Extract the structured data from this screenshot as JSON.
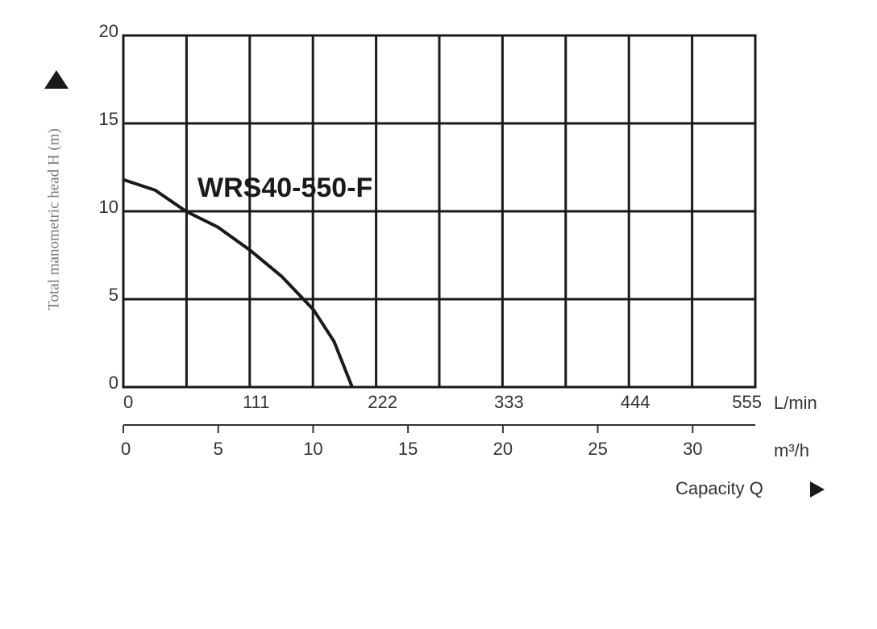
{
  "chart_data": {
    "type": "line",
    "curve_label": "WRS40-550-F",
    "y_label": "Total manometric head H (m)",
    "x_unit": "L/min",
    "x2_unit": "m³/h",
    "x_title": "Capacity Q",
    "x": [
      0,
      28,
      55,
      83,
      111,
      139,
      167,
      185,
      201
    ],
    "series": [
      {
        "name": "WRS40-550-F",
        "color": "#1a1a1a",
        "values": [
          11.8,
          11.2,
          10,
          9.1,
          7.8,
          6.3,
          4.4,
          2.6,
          0
        ]
      }
    ],
    "xlim": [
      0,
      555
    ],
    "xticks": [
      0,
      111,
      222,
      333,
      444,
      555
    ],
    "xgrid": [
      0,
      55.5,
      111,
      166.5,
      222,
      277.5,
      333,
      388.5,
      444,
      499.5,
      555
    ],
    "x2lim": [
      0,
      33.3
    ],
    "x2ticks": [
      0,
      5,
      10,
      15,
      20,
      25,
      30
    ],
    "ylim": [
      0,
      20
    ],
    "yticks": [
      0,
      5,
      10,
      15,
      20
    ],
    "grid": true
  }
}
